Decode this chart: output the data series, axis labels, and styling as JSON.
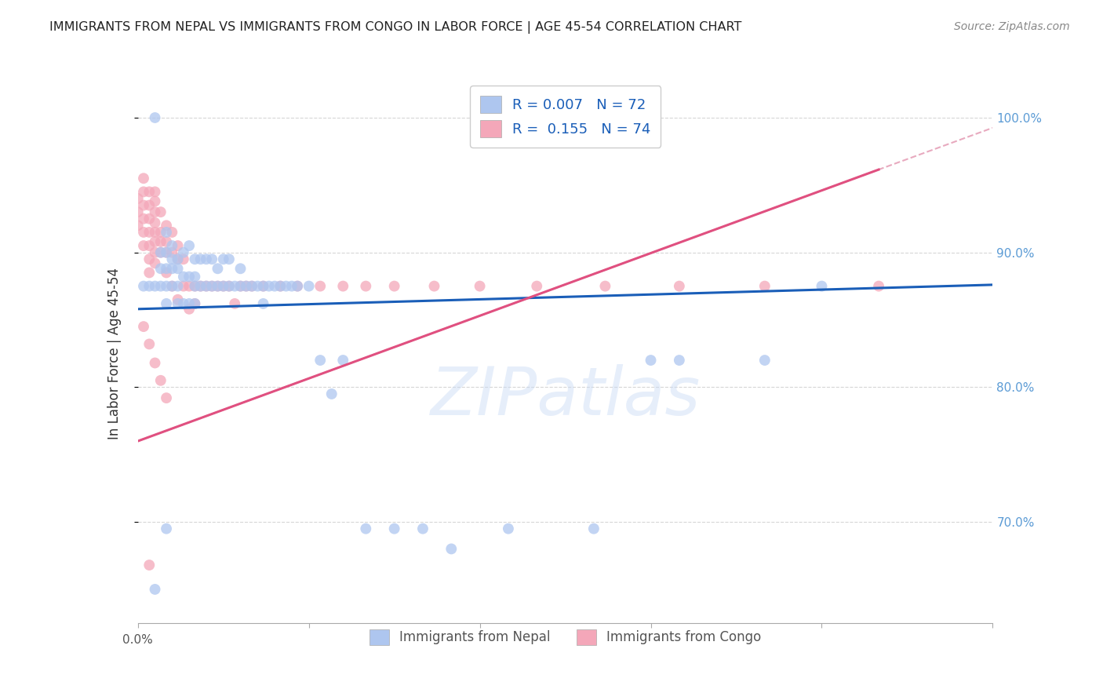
{
  "title": "IMMIGRANTS FROM NEPAL VS IMMIGRANTS FROM CONGO IN LABOR FORCE | AGE 45-54 CORRELATION CHART",
  "source": "Source: ZipAtlas.com",
  "ylabel": "In Labor Force | Age 45-54",
  "ytick_labels": [
    "100.0%",
    "90.0%",
    "80.0%",
    "70.0%"
  ],
  "ytick_values": [
    1.0,
    0.9,
    0.8,
    0.7
  ],
  "xmin": 0.0,
  "xmax": 0.15,
  "ymin": 0.625,
  "ymax": 1.025,
  "R_nepal": 0.007,
  "N_nepal": 72,
  "R_congo": 0.155,
  "N_congo": 74,
  "color_nepal": "#aec6ef",
  "color_congo": "#f4a7b9",
  "trendline_nepal_color": "#1a5eb8",
  "trendline_congo_color": "#e05080",
  "trendline_dashed_color": "#e8aabf",
  "watermark": "ZIPatlas",
  "nepal_x": [
    0.003,
    0.001,
    0.002,
    0.003,
    0.004,
    0.004,
    0.004,
    0.005,
    0.005,
    0.005,
    0.005,
    0.005,
    0.006,
    0.006,
    0.006,
    0.006,
    0.007,
    0.007,
    0.007,
    0.007,
    0.008,
    0.008,
    0.008,
    0.009,
    0.009,
    0.009,
    0.01,
    0.01,
    0.01,
    0.01,
    0.011,
    0.011,
    0.012,
    0.012,
    0.013,
    0.013,
    0.014,
    0.014,
    0.015,
    0.015,
    0.016,
    0.016,
    0.017,
    0.018,
    0.018,
    0.019,
    0.02,
    0.021,
    0.022,
    0.022,
    0.023,
    0.024,
    0.025,
    0.026,
    0.027,
    0.028,
    0.03,
    0.032,
    0.034,
    0.036,
    0.04,
    0.045,
    0.05,
    0.055,
    0.065,
    0.08,
    0.09,
    0.095,
    0.11,
    0.12,
    0.005,
    0.003
  ],
  "nepal_y": [
    1.0,
    0.875,
    0.875,
    0.875,
    0.9,
    0.888,
    0.875,
    0.915,
    0.9,
    0.888,
    0.875,
    0.862,
    0.905,
    0.895,
    0.888,
    0.875,
    0.895,
    0.888,
    0.875,
    0.862,
    0.9,
    0.882,
    0.862,
    0.905,
    0.882,
    0.862,
    0.895,
    0.882,
    0.875,
    0.862,
    0.895,
    0.875,
    0.895,
    0.875,
    0.895,
    0.875,
    0.888,
    0.875,
    0.895,
    0.875,
    0.895,
    0.875,
    0.875,
    0.888,
    0.875,
    0.875,
    0.875,
    0.875,
    0.875,
    0.862,
    0.875,
    0.875,
    0.875,
    0.875,
    0.875,
    0.875,
    0.875,
    0.82,
    0.795,
    0.82,
    0.695,
    0.695,
    0.695,
    0.68,
    0.695,
    0.695,
    0.82,
    0.82,
    0.82,
    0.875,
    0.695,
    0.65
  ],
  "congo_x": [
    0.0,
    0.0,
    0.0,
    0.001,
    0.001,
    0.001,
    0.001,
    0.001,
    0.001,
    0.002,
    0.002,
    0.002,
    0.002,
    0.002,
    0.002,
    0.002,
    0.003,
    0.003,
    0.003,
    0.003,
    0.003,
    0.003,
    0.003,
    0.003,
    0.004,
    0.004,
    0.004,
    0.004,
    0.005,
    0.005,
    0.005,
    0.005,
    0.006,
    0.006,
    0.006,
    0.007,
    0.007,
    0.007,
    0.008,
    0.008,
    0.009,
    0.009,
    0.01,
    0.01,
    0.011,
    0.012,
    0.013,
    0.014,
    0.015,
    0.016,
    0.017,
    0.018,
    0.019,
    0.02,
    0.022,
    0.025,
    0.028,
    0.032,
    0.036,
    0.04,
    0.045,
    0.052,
    0.06,
    0.07,
    0.082,
    0.095,
    0.11,
    0.13,
    0.001,
    0.002,
    0.003,
    0.004,
    0.005,
    0.002
  ],
  "congo_y": [
    0.94,
    0.93,
    0.92,
    0.955,
    0.945,
    0.935,
    0.925,
    0.915,
    0.905,
    0.945,
    0.935,
    0.925,
    0.915,
    0.905,
    0.895,
    0.885,
    0.945,
    0.938,
    0.93,
    0.922,
    0.915,
    0.908,
    0.9,
    0.892,
    0.93,
    0.915,
    0.908,
    0.9,
    0.92,
    0.908,
    0.9,
    0.885,
    0.915,
    0.9,
    0.875,
    0.905,
    0.895,
    0.865,
    0.895,
    0.875,
    0.875,
    0.858,
    0.875,
    0.862,
    0.875,
    0.875,
    0.875,
    0.875,
    0.875,
    0.875,
    0.862,
    0.875,
    0.875,
    0.875,
    0.875,
    0.875,
    0.875,
    0.875,
    0.875,
    0.875,
    0.875,
    0.875,
    0.875,
    0.875,
    0.875,
    0.875,
    0.875,
    0.875,
    0.845,
    0.832,
    0.818,
    0.805,
    0.792,
    0.668
  ],
  "nepal_trendline_slope": 0.12,
  "nepal_trendline_intercept": 0.858,
  "congo_trendline_slope": 1.55,
  "congo_trendline_intercept": 0.76
}
